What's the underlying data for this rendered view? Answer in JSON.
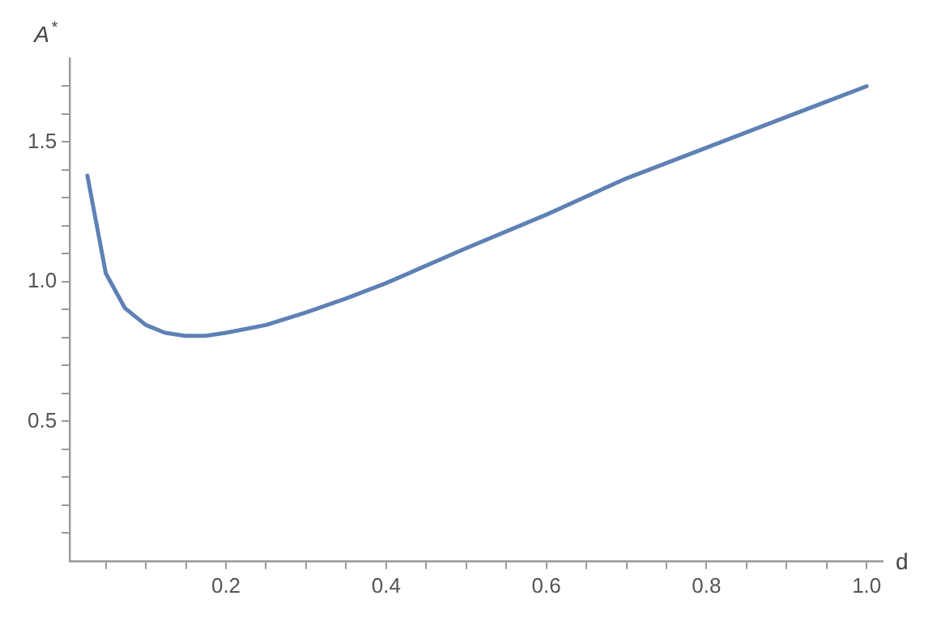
{
  "chart_data": {
    "type": "line",
    "xlabel": "d",
    "ylabel": "A$^{*}$",
    "x": [
      0.027,
      0.05,
      0.074,
      0.1,
      0.124,
      0.149,
      0.174,
      0.2,
      0.25,
      0.3,
      0.35,
      0.4,
      0.5,
      0.6,
      0.7,
      0.8,
      0.9,
      1.0
    ],
    "series": [
      {
        "color": "#5e81b5",
        "values": [
          1.38,
          1.03,
          0.905,
          0.845,
          0.817,
          0.806,
          0.806,
          0.817,
          0.845,
          0.89,
          0.94,
          0.995,
          1.12,
          1.24,
          1.37,
          1.48,
          1.59,
          1.7
        ]
      }
    ],
    "xlim": [
      0.005,
      1.02
    ],
    "ylim": [
      0,
      1.8
    ],
    "xticks": [
      {
        "value": 0.05,
        "label": null
      },
      {
        "value": 0.1,
        "label": null
      },
      {
        "value": 0.15,
        "label": null
      },
      0.2,
      {
        "value": 0.25,
        "label": null
      },
      {
        "value": 0.3,
        "label": null
      },
      {
        "value": 0.35,
        "label": null
      },
      0.4,
      {
        "value": 0.45,
        "label": null
      },
      {
        "value": 0.5,
        "label": null
      },
      {
        "value": 0.55,
        "label": null
      },
      0.6,
      {
        "value": 0.65,
        "label": null
      },
      {
        "value": 0.7,
        "label": null
      },
      {
        "value": 0.75,
        "label": null
      },
      0.8,
      {
        "value": 0.85,
        "label": null
      },
      {
        "value": 0.9,
        "label": null
      },
      {
        "value": 0.95,
        "label": null
      },
      {
        "value": 1,
        "label": "1.0"
      }
    ],
    "yticks": [
      {
        "value": 0.1,
        "label": null
      },
      {
        "value": 0.2,
        "label": null
      },
      {
        "value": 0.3,
        "label": null
      },
      {
        "value": 0.4,
        "label": null
      },
      0.5,
      {
        "value": 0.6,
        "label": null
      },
      {
        "value": 0.7,
        "label": null
      },
      {
        "value": 0.8,
        "label": null
      },
      {
        "value": 0.9,
        "label": null
      },
      {
        "value": 1,
        "label": "1.0"
      },
      {
        "value": 1.1,
        "label": null
      },
      {
        "value": 1.2,
        "label": null
      },
      {
        "value": 1.3,
        "label": null
      },
      {
        "value": 1.4,
        "label": null
      },
      1.5,
      {
        "value": 1.6,
        "label": null
      },
      {
        "value": 1.7,
        "label": null
      }
    ],
    "grid": false,
    "legend": false,
    "marker": "none",
    "line_style": "solid"
  }
}
